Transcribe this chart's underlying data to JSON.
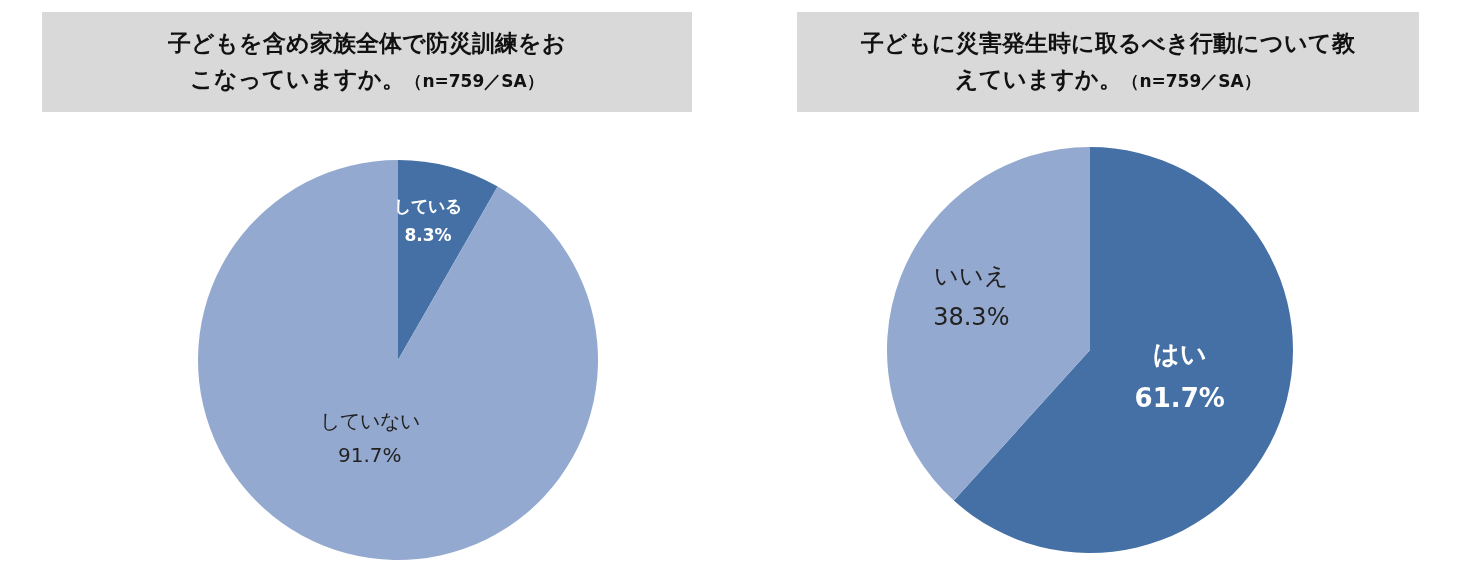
{
  "chart_data": [
    {
      "type": "pie",
      "title": "子どもを含め家族全体で防災訓練をおこなっていますか。",
      "subtitle": "（n=759／SA）",
      "categories": [
        "している",
        "していない"
      ],
      "values": [
        8.3,
        91.7
      ],
      "value_labels": [
        "8.3%",
        "91.7%"
      ],
      "colors": [
        "#4570a5",
        "#94a9cf"
      ]
    },
    {
      "type": "pie",
      "title": "子どもに災害発生時に取るべき行動について教えていますか。",
      "subtitle": "（n=759／SA）",
      "categories": [
        "はい",
        "いいえ"
      ],
      "values": [
        61.7,
        38.3
      ],
      "value_labels": [
        "61.7%",
        "38.3%"
      ],
      "colors": [
        "#4570a5",
        "#94a9cf"
      ]
    }
  ]
}
